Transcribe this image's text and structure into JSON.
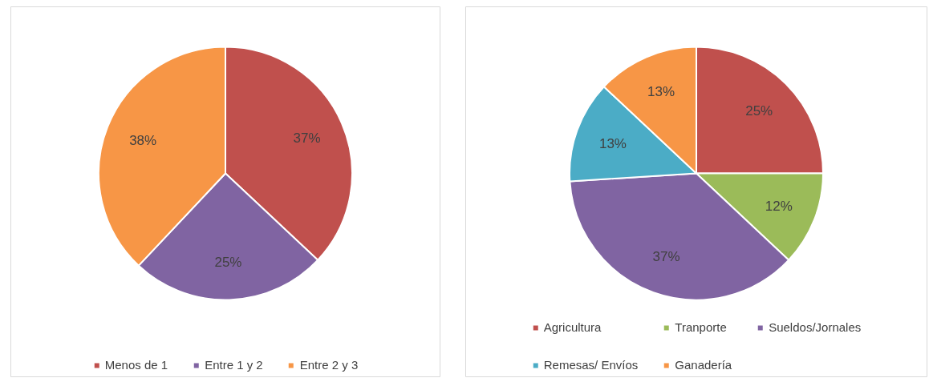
{
  "chart_data": [
    {
      "type": "pie",
      "categories": [
        "Menos de 1",
        "Entre 1 y 2",
        "Entre 2 y 3"
      ],
      "values": [
        37,
        25,
        38
      ],
      "value_labels": [
        "37%",
        "25%",
        "38%"
      ],
      "colors": [
        "#c0504d",
        "#8064a2",
        "#f79646"
      ],
      "legend": "bottom"
    },
    {
      "type": "pie",
      "categories": [
        "Agricultura",
        "Tranporte",
        "Sueldos/Jornales",
        "Remesas/ Envíos",
        "Ganadería"
      ],
      "values": [
        25,
        12,
        37,
        13,
        13
      ],
      "value_labels": [
        "25%",
        "12%",
        "37%",
        "13%",
        "13%"
      ],
      "colors": [
        "#c0504d",
        "#9bbb59",
        "#8064a2",
        "#4bacc6",
        "#f79646"
      ],
      "legend": "bottom"
    }
  ]
}
